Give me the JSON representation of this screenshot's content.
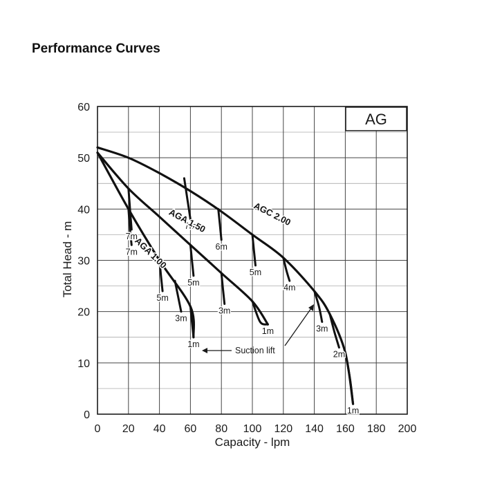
{
  "page": {
    "title": "Performance Curves"
  },
  "chart_data": {
    "type": "line",
    "title": "AG",
    "xlabel": "Capacity - lpm",
    "ylabel": "Total Head - m",
    "xlim": [
      0,
      200
    ],
    "ylim": [
      0,
      60
    ],
    "xticks": [
      0,
      20,
      40,
      60,
      80,
      100,
      120,
      140,
      160,
      180,
      200
    ],
    "yticks": [
      0,
      10,
      20,
      30,
      40,
      50,
      60
    ],
    "grid": true,
    "callout": "Suction lift",
    "series": [
      {
        "name": "AGC 2.00",
        "x": [
          0,
          20,
          40,
          60,
          80,
          100,
          120,
          140,
          150,
          160,
          165
        ],
        "y": [
          52,
          50,
          47,
          43.5,
          39.5,
          35,
          30.5,
          24,
          19.5,
          12,
          2
        ],
        "suction_lift_curves": [
          {
            "label": "7m",
            "x": [
              56,
              58,
              60
            ],
            "y": [
              46,
              42,
              38
            ]
          },
          {
            "label": "6m",
            "x": [
              78,
              79,
              80
            ],
            "y": [
              40,
              37,
              34
            ]
          },
          {
            "label": "5m",
            "x": [
              100,
              101,
              102
            ],
            "y": [
              35,
              32,
              29
            ]
          },
          {
            "label": "4m",
            "x": [
              120,
              122,
              124
            ],
            "y": [
              30.5,
              28,
              26
            ]
          },
          {
            "label": "3m",
            "x": [
              140,
              143,
              145
            ],
            "y": [
              24,
              21,
              18
            ]
          },
          {
            "label": "2m",
            "x": [
              150,
              153,
              156
            ],
            "y": [
              19.5,
              16,
              13
            ]
          },
          {
            "label": "1m",
            "x": [
              160,
              163,
              165
            ],
            "y": [
              12,
              7,
              2
            ]
          }
        ]
      },
      {
        "name": "AGA 1.50",
        "x": [
          0,
          20,
          40,
          60,
          80,
          100,
          110
        ],
        "y": [
          51,
          44,
          38.5,
          33,
          27.5,
          22,
          17.5
        ],
        "suction_lift_curves": [
          {
            "label": "7m",
            "x": [
              20,
              21,
              22
            ],
            "y": [
              44,
              40,
              36
            ]
          },
          {
            "label": "5m",
            "x": [
              60,
              61,
              62
            ],
            "y": [
              33,
              30,
              27
            ]
          },
          {
            "label": "3m",
            "x": [
              80,
              81,
              82
            ],
            "y": [
              27.5,
              24.5,
              21.5
            ]
          },
          {
            "label": "1m",
            "x": [
              100,
              105,
              110
            ],
            "y": [
              22,
              18,
              17.5
            ]
          }
        ]
      },
      {
        "name": "AGA 1.00",
        "x": [
          0,
          20,
          40,
          60,
          62
        ],
        "y": [
          51,
          40,
          30,
          21,
          15
        ],
        "suction_lift_curves": [
          {
            "label": "7m",
            "x": [
              20,
              21,
              22
            ],
            "y": [
              40,
              36,
              33
            ]
          },
          {
            "label": "5m",
            "x": [
              40,
              41,
              42
            ],
            "y": [
              30,
              27,
              24
            ]
          },
          {
            "label": "3m",
            "x": [
              50,
              52,
              54
            ],
            "y": [
              26,
              23,
              20
            ]
          },
          {
            "label": "1m",
            "x": [
              60,
              61,
              62
            ],
            "y": [
              21,
              18,
              15
            ]
          }
        ]
      }
    ]
  }
}
